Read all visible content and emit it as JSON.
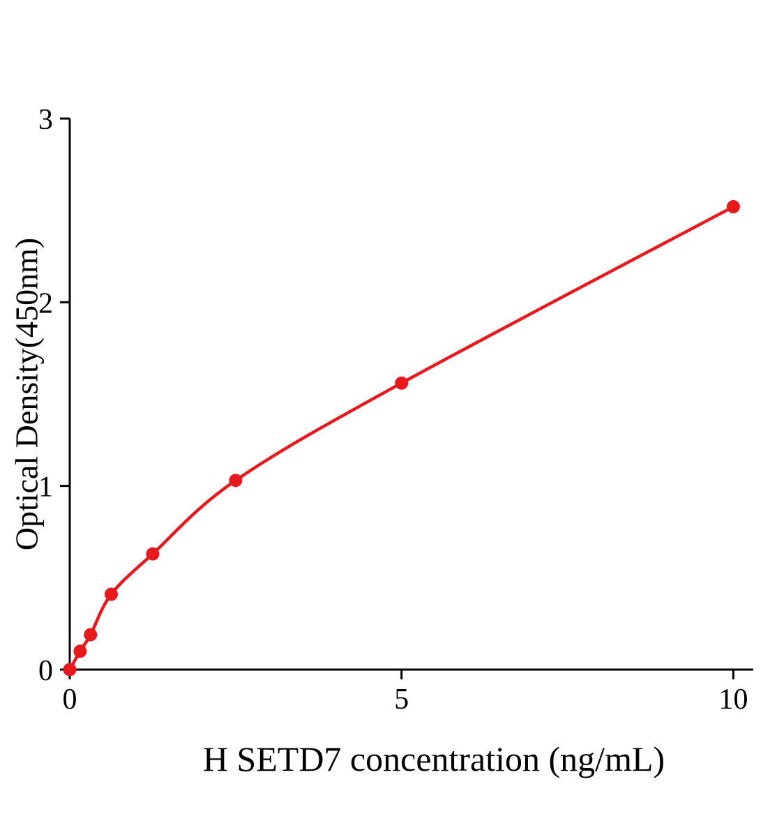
{
  "chart_data": {
    "type": "scatter",
    "title": "",
    "xlabel": "H SETD7 concentration (ng/mL)",
    "ylabel": "Optical Density(450nm)",
    "x": [
      0,
      0.156,
      0.313,
      0.625,
      1.25,
      2.5,
      5,
      10
    ],
    "y": [
      0,
      0.1,
      0.19,
      0.41,
      0.63,
      1.03,
      1.56,
      2.52
    ],
    "xticks": [
      0,
      5,
      10
    ],
    "yticks": [
      0,
      1,
      2,
      3
    ],
    "xlim": [
      0,
      10.3
    ],
    "ylim": [
      0,
      3
    ],
    "grid": false,
    "legend": null,
    "curve": "smooth-fit-through-points",
    "colors": {
      "points": "#e8191d",
      "line": "#e8191d",
      "axis": "#000000",
      "background": "#ffffff"
    }
  }
}
